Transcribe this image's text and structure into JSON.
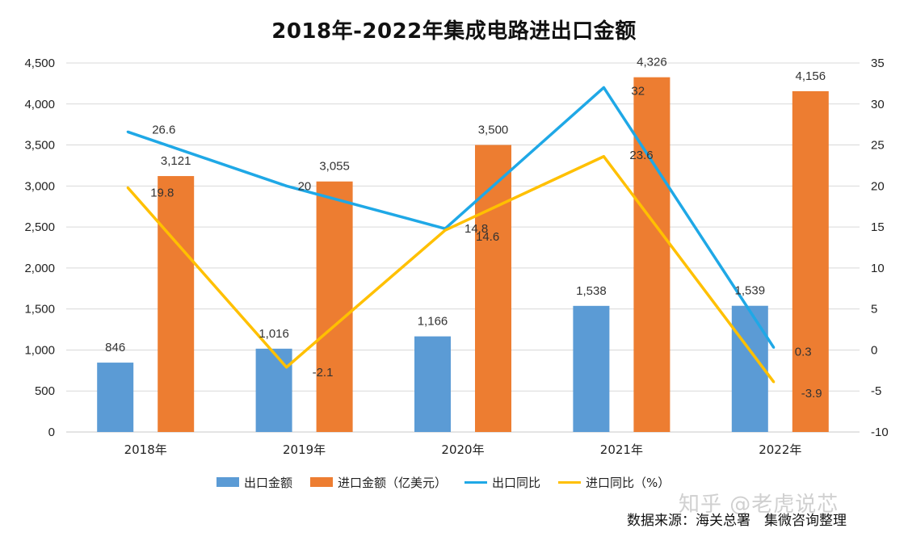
{
  "chart_data": {
    "type": "bar+line",
    "title": "2018年-2022年集成电路进出口金额",
    "categories": [
      "2018年",
      "2019年",
      "2020年",
      "2021年",
      "2022年"
    ],
    "y_left": {
      "min": 0,
      "max": 4500,
      "step": 500,
      "ticks": [
        "0",
        "500",
        "1,000",
        "1,500",
        "2,000",
        "2,500",
        "3,000",
        "3,500",
        "4,000",
        "4,500"
      ]
    },
    "y_right": {
      "min": -10,
      "max": 35,
      "step": 5,
      "ticks": [
        "-10",
        "-5",
        "0",
        "5",
        "10",
        "15",
        "20",
        "25",
        "30",
        "35"
      ]
    },
    "bar_series": [
      {
        "name": "出口金额",
        "color": "#5b9bd5",
        "values": [
          846,
          1016,
          1166,
          1538,
          1539
        ],
        "labels": [
          "846",
          "1,016",
          "1,166",
          "1,538",
          "1,539"
        ]
      },
      {
        "name": "进口金额（亿美元）",
        "color": "#ed7d31",
        "values": [
          3121,
          3055,
          3500,
          4326,
          4156
        ],
        "labels": [
          "3,121",
          "3,055",
          "3,500",
          "4,326",
          "4,156"
        ]
      }
    ],
    "line_series": [
      {
        "name": "出口同比",
        "color": "#1fa8e6",
        "values": [
          26.6,
          20,
          14.8,
          32,
          0.3
        ],
        "labels": [
          "26.6",
          "20",
          "14.8",
          "32",
          "0.3"
        ]
      },
      {
        "name": "进口同比（%）",
        "color": "#ffc000",
        "values": [
          19.8,
          -2.1,
          14.6,
          23.6,
          -3.9
        ],
        "labels": [
          "19.8",
          "-2.1",
          "14.6",
          "23.6",
          "-3.9"
        ]
      }
    ],
    "grid": true,
    "legend_position": "bottom"
  },
  "watermark": "知乎 @老虎说芯",
  "source": "数据来源：海关总署　集微咨询整理"
}
